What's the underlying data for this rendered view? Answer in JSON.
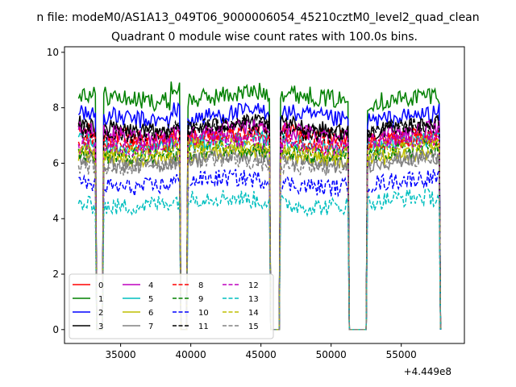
{
  "figure": {
    "suptitle": "n file: modeM0/AS1A13_049T06_9000006054_45210cztM0_level2_quad_clean",
    "title": "Quadrant 0 module wise count rates with 100.0s bins.",
    "offset_label": "+4.449e8"
  },
  "chart_data": {
    "type": "line",
    "title": "Quadrant 0 module wise count rates with 100.0s bins.",
    "xlabel": "",
    "ylabel": "",
    "xlim": [
      31000,
      59500
    ],
    "ylim": [
      -0.5,
      10.2
    ],
    "x_offset": 444900000,
    "xticks": [
      35000,
      40000,
      45000,
      50000,
      55000
    ],
    "xtick_labels": [
      "35000",
      "40000",
      "45000",
      "50000",
      "55000"
    ],
    "yticks": [
      0,
      2,
      4,
      6,
      8,
      10
    ],
    "ytick_labels": [
      "0",
      "2",
      "4",
      "6",
      "8",
      "10"
    ],
    "grid": false,
    "legend_position": "lower-left",
    "legend_columns": 4,
    "x_start": 32000,
    "x_step": 100,
    "gaps": [
      [
        33300,
        33700
      ],
      [
        39300,
        39700
      ],
      [
        45700,
        46300
      ],
      [
        51300,
        52500
      ],
      [
        57800,
        57900
      ]
    ],
    "series": [
      {
        "name": "0",
        "color": "#ff0000",
        "dash": "solid",
        "mean": 7.0,
        "spread": 0.32,
        "w": 0.1,
        "bump": 0.15
      },
      {
        "name": "1",
        "color": "#008000",
        "dash": "solid",
        "mean": 8.4,
        "spread": 0.34,
        "w": 0.12,
        "bump": 0.45
      },
      {
        "name": "2",
        "color": "#0000ff",
        "dash": "solid",
        "mean": 7.7,
        "spread": 0.33,
        "w": 0.14,
        "bump": 0.35
      },
      {
        "name": "3",
        "color": "#000000",
        "dash": "solid",
        "mean": 7.3,
        "spread": 0.3,
        "w": 0.16,
        "bump": 0.2
      },
      {
        "name": "4",
        "color": "#bf00bf",
        "dash": "solid",
        "mean": 7.1,
        "spread": 0.32,
        "w": 0.18,
        "bump": 0.2
      },
      {
        "name": "5",
        "color": "#00bfbf",
        "dash": "solid",
        "mean": 6.7,
        "spread": 0.3,
        "w": 0.2,
        "bump": 0.1
      },
      {
        "name": "6",
        "color": "#bfbf00",
        "dash": "solid",
        "mean": 6.3,
        "spread": 0.3,
        "w": 0.22,
        "bump": 0.1
      },
      {
        "name": "7",
        "color": "#808080",
        "dash": "solid",
        "mean": 6.1,
        "spread": 0.3,
        "w": 0.24,
        "bump": 0.05
      },
      {
        "name": "8",
        "color": "#ff0000",
        "dash": "dashed",
        "mean": 6.8,
        "spread": 0.32,
        "w": 0.26,
        "bump": 0.1
      },
      {
        "name": "9",
        "color": "#008000",
        "dash": "dashed",
        "mean": 6.4,
        "spread": 0.32,
        "w": 0.28,
        "bump": 0.05
      },
      {
        "name": "10",
        "color": "#0000ff",
        "dash": "dashed",
        "mean": 5.3,
        "spread": 0.32,
        "w": 0.3,
        "bump": 0.05
      },
      {
        "name": "11",
        "color": "#000000",
        "dash": "dashed",
        "mean": 7.2,
        "spread": 0.3,
        "w": 0.32,
        "bump": 0.15
      },
      {
        "name": "12",
        "color": "#bf00bf",
        "dash": "dashed",
        "mean": 6.7,
        "spread": 0.32,
        "w": 0.34,
        "bump": 0.1
      },
      {
        "name": "13",
        "color": "#00bfbf",
        "dash": "dashed",
        "mean": 4.6,
        "spread": 0.32,
        "w": 0.36,
        "bump": 0.0
      },
      {
        "name": "14",
        "color": "#bfbf00",
        "dash": "dashed",
        "mean": 6.5,
        "spread": 0.3,
        "w": 0.38,
        "bump": 0.05
      },
      {
        "name": "15",
        "color": "#808080",
        "dash": "dashed",
        "mean": 6.0,
        "spread": 0.3,
        "w": 0.4,
        "bump": 0.0
      }
    ]
  }
}
